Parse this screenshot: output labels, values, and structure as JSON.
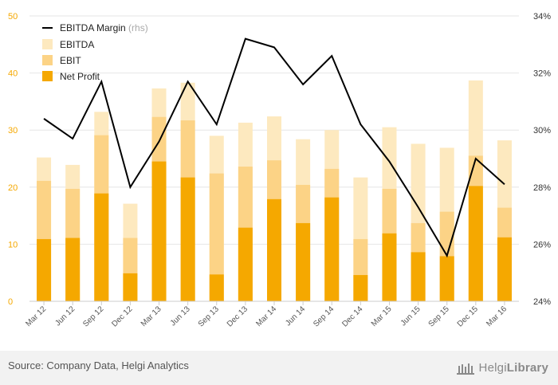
{
  "chart_data": {
    "type": "bar+line",
    "title": "",
    "categories": [
      "Mar 12",
      "Jun 12",
      "Sep 12",
      "Dec 12",
      "Mar 13",
      "Jun 13",
      "Sep 13",
      "Dec 13",
      "Mar 14",
      "Jun 14",
      "Sep 14",
      "Dec 14",
      "Mar 15",
      "Jun 15",
      "Sep 15",
      "Dec 15",
      "Mar 16"
    ],
    "series": [
      {
        "name": "EBITDA",
        "type": "bar",
        "color": "#fde9bf",
        "values": [
          25.2,
          23.9,
          33.2,
          17.1,
          37.3,
          38.3,
          29.0,
          31.3,
          32.4,
          28.4,
          30.0,
          21.7,
          30.5,
          27.6,
          26.9,
          38.7,
          28.2
        ]
      },
      {
        "name": "EBIT",
        "type": "bar",
        "color": "#fcd386",
        "values": [
          21.1,
          19.7,
          29.1,
          11.1,
          32.3,
          31.7,
          22.4,
          23.6,
          24.7,
          20.4,
          23.2,
          10.9,
          19.7,
          13.7,
          15.7,
          25.5,
          16.4
        ]
      },
      {
        "name": "Net Profit",
        "type": "bar",
        "color": "#f5a800",
        "values": [
          10.9,
          11.1,
          18.9,
          4.9,
          24.5,
          21.7,
          4.7,
          12.9,
          17.9,
          13.7,
          18.2,
          4.6,
          11.9,
          8.6,
          7.9,
          20.2,
          11.2
        ]
      },
      {
        "name": "EBITDA Margin",
        "axis_note": "(rhs)",
        "type": "line",
        "color": "#000000",
        "axis": "right",
        "values": [
          30.4,
          29.7,
          31.7,
          28.0,
          29.6,
          31.7,
          30.2,
          33.2,
          32.9,
          31.6,
          32.6,
          30.2,
          28.9,
          27.3,
          25.6,
          29.0,
          28.1
        ]
      }
    ],
    "y_left": {
      "min": 0,
      "max": 50,
      "ticks": [
        "0",
        "10",
        "20",
        "30",
        "40",
        "50"
      ]
    },
    "y_right": {
      "min": 24,
      "max": 34,
      "ticks": [
        "24%",
        "26%",
        "28%",
        "30%",
        "32%",
        "34%"
      ]
    },
    "legend_position": "top-left",
    "grid": true
  },
  "footer": {
    "source": "Source: Company Data, Helgi Analytics",
    "logo_light": "Helgi",
    "logo_bold": "Library"
  }
}
